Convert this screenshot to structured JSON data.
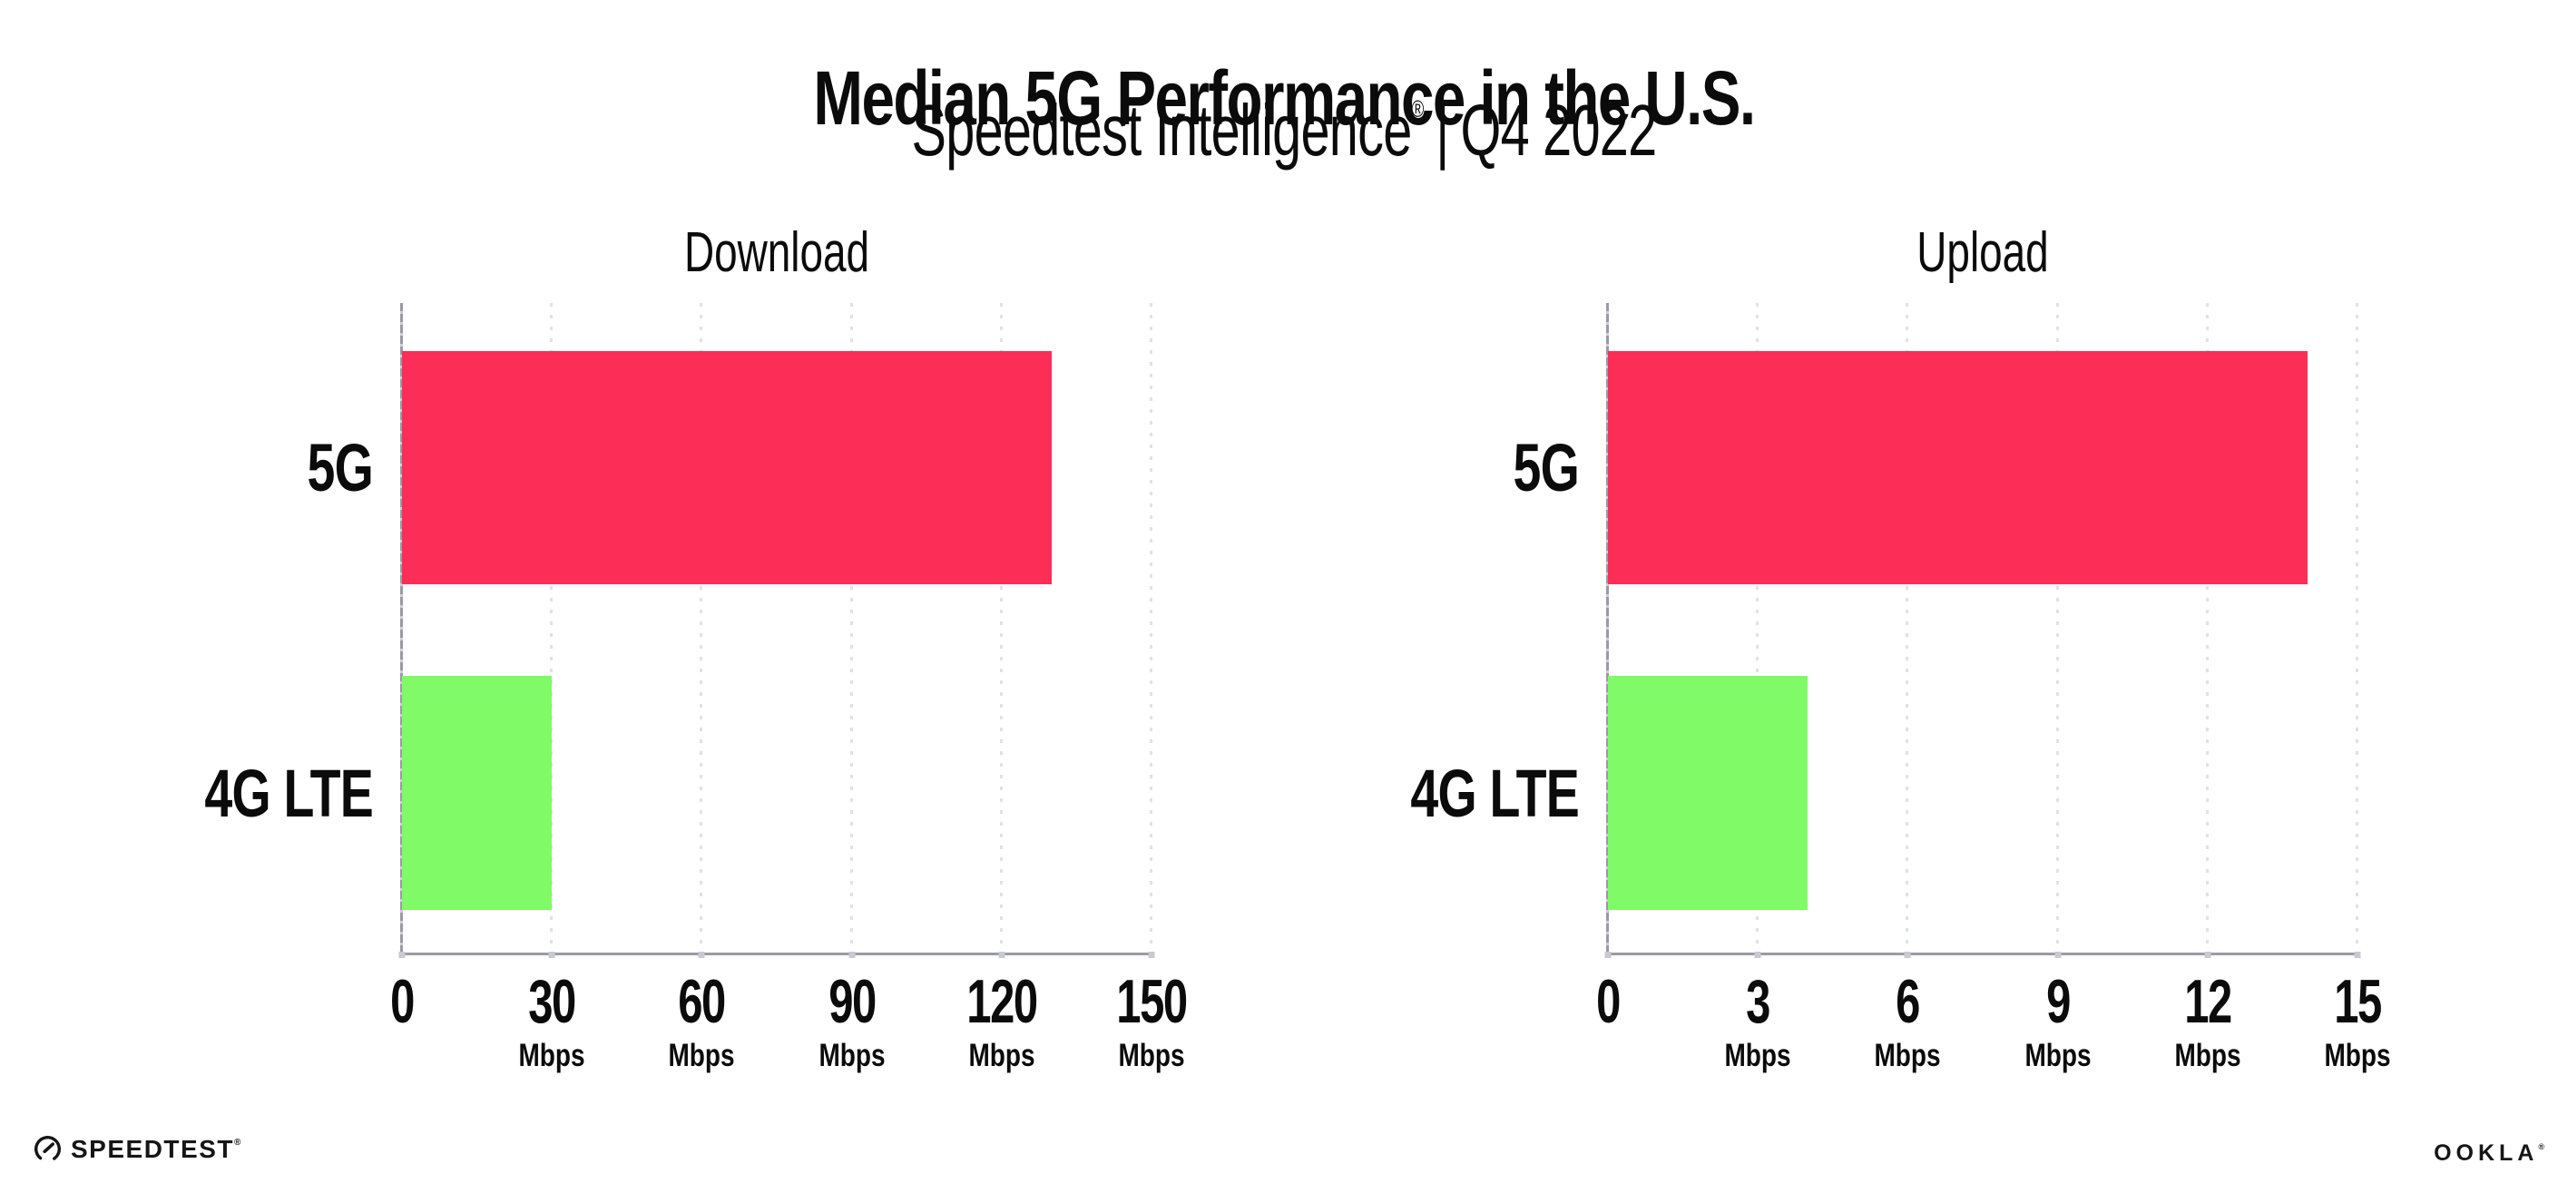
{
  "header": {
    "title": "Median 5G Performance in the U.S.",
    "subtitle_brand": "Speedtest Intelligence",
    "subtitle_registered": "®",
    "subtitle_separator": "|",
    "subtitle_period": "Q4 2022"
  },
  "chart_data": [
    {
      "type": "bar",
      "orientation": "horizontal",
      "title": "Download",
      "categories": [
        "5G",
        "4G LTE"
      ],
      "values": [
        130,
        30
      ],
      "unit": "Mbps",
      "xlim": [
        0,
        150
      ],
      "grid": "dotted vertical gridlines every 30 Mbps",
      "bar_colors": [
        "#FC2D56",
        "#80FA66"
      ],
      "ticks": [
        {
          "label": "0",
          "unit": ""
        },
        {
          "label": "30",
          "unit": "Mbps"
        },
        {
          "label": "60",
          "unit": "Mbps"
        },
        {
          "label": "90",
          "unit": "Mbps"
        },
        {
          "label": "120",
          "unit": "Mbps"
        },
        {
          "label": "150",
          "unit": "Mbps"
        }
      ]
    },
    {
      "type": "bar",
      "orientation": "horizontal",
      "title": "Upload",
      "categories": [
        "5G",
        "4G LTE"
      ],
      "values": [
        14,
        4
      ],
      "unit": "Mbps",
      "xlim": [
        0,
        15
      ],
      "grid": "dotted vertical gridlines every 3 Mbps",
      "bar_colors": [
        "#FC2D56",
        "#80FA66"
      ],
      "ticks": [
        {
          "label": "0",
          "unit": ""
        },
        {
          "label": "3",
          "unit": "Mbps"
        },
        {
          "label": "6",
          "unit": "Mbps"
        },
        {
          "label": "9",
          "unit": "Mbps"
        },
        {
          "label": "12",
          "unit": "Mbps"
        },
        {
          "label": "15",
          "unit": "Mbps"
        }
      ]
    }
  ],
  "footer": {
    "speedtest_label": "SPEEDTEST",
    "speedtest_mark": "®",
    "ookla_label": "OOKLA",
    "ookla_mark": "®"
  },
  "colors": {
    "bar-5g": "#FC2D56",
    "bar-4g": "#80FA66",
    "grid": "#DFE1EC",
    "axis": "#9B9BA3",
    "tick": "#C9C9D4",
    "text": "#0B0B0C"
  }
}
